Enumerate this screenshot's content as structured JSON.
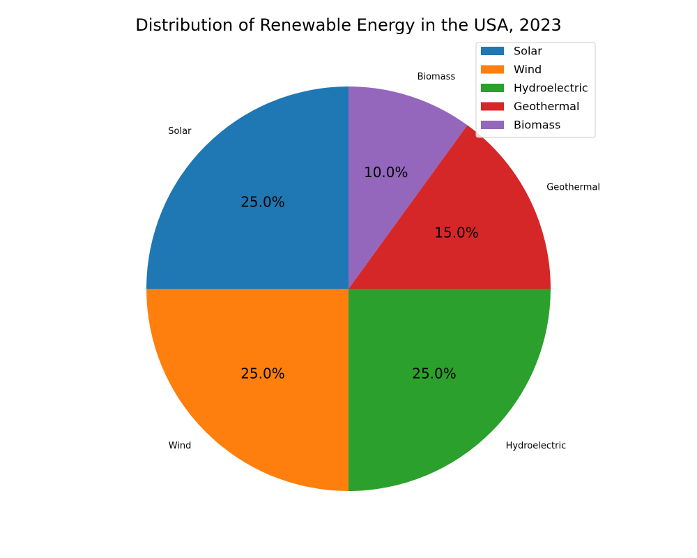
{
  "chart_data": {
    "type": "pie",
    "title": "Distribution of Renewable Energy in the USA, 2023",
    "categories": [
      "Solar",
      "Wind",
      "Hydroelectric",
      "Geothermal",
      "Biomass"
    ],
    "values": [
      25,
      25,
      25,
      15,
      10
    ],
    "percent_labels": [
      "25.0%",
      "25.0%",
      "25.0%",
      "15.0%",
      "10.0%"
    ],
    "colors": [
      "#1f77b4",
      "#ff7f0e",
      "#2ca02c",
      "#d62728",
      "#9467bd"
    ],
    "start_angle_deg": 90,
    "direction": "counterclockwise",
    "legend": {
      "placement": "top-right",
      "entries": [
        "Solar",
        "Wind",
        "Hydroelectric",
        "Geothermal",
        "Biomass"
      ]
    }
  }
}
